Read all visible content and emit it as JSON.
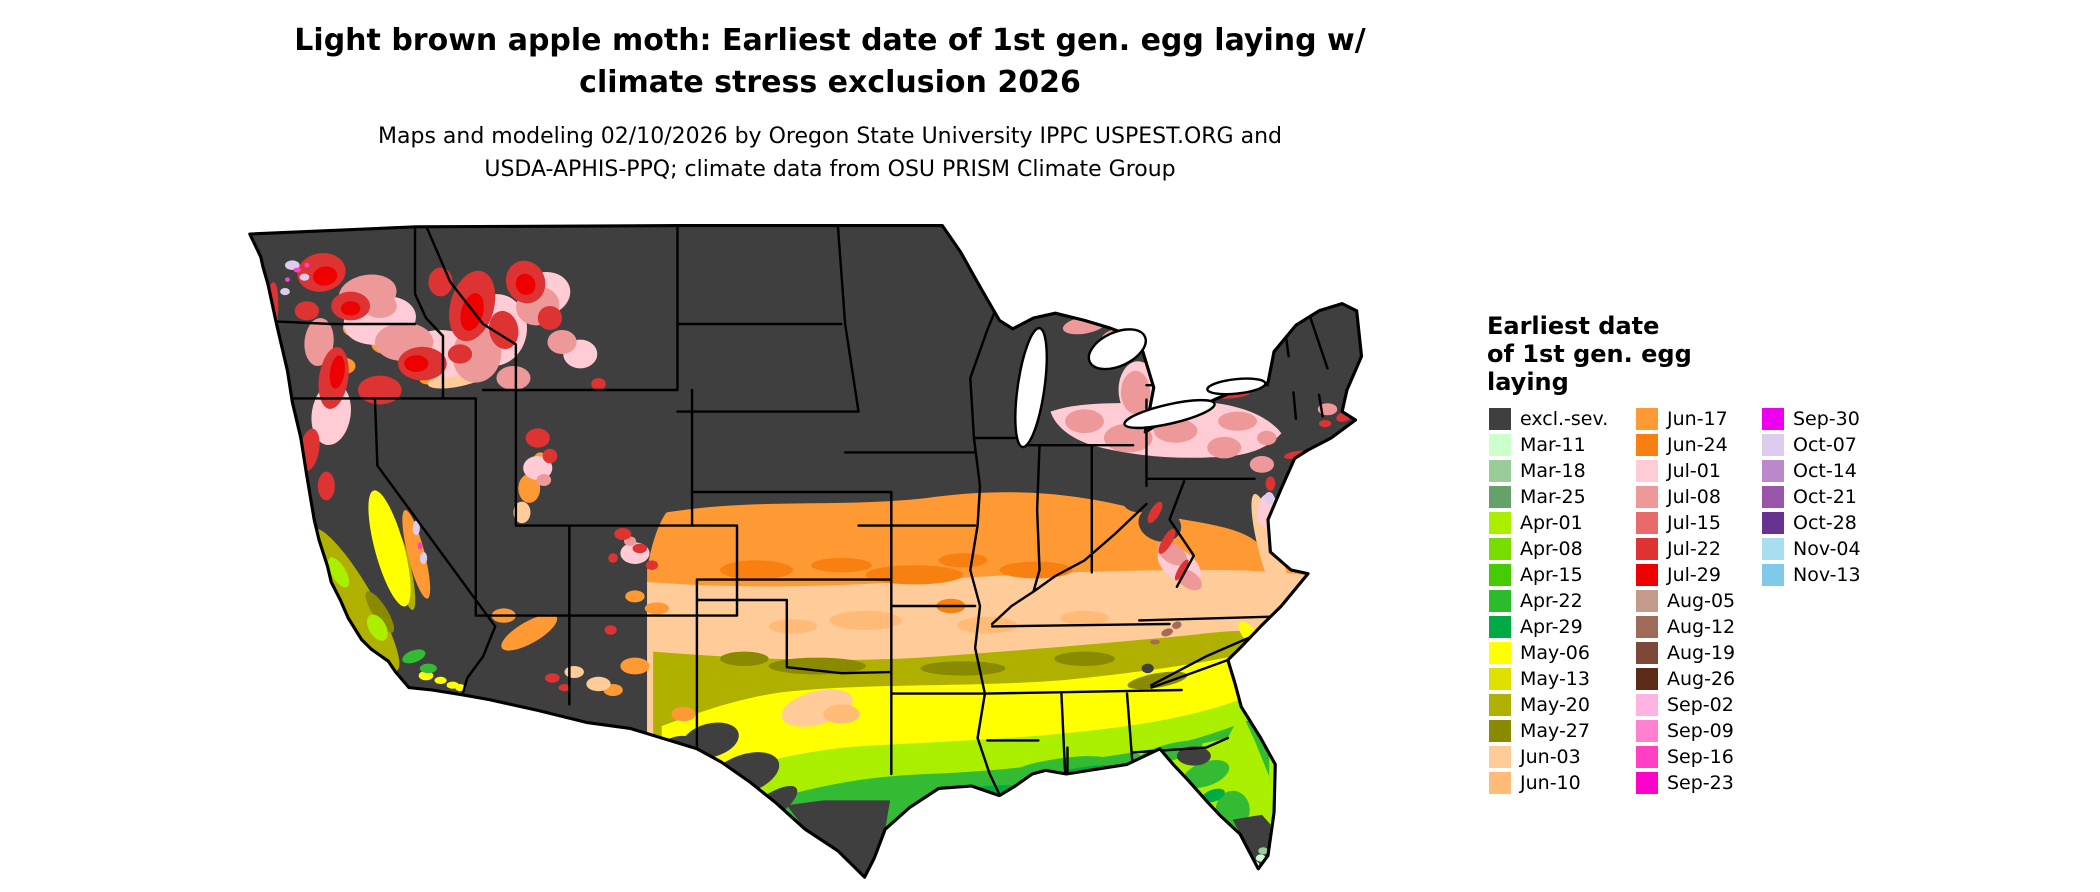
{
  "title": {
    "line1": "Light brown apple moth: Earliest date of 1st gen. egg laying w/",
    "line2": "climate stress exclusion 2026"
  },
  "subtitle": {
    "line1": "Maps and modeling 02/10/2026 by Oregon State University IPPC USPEST.ORG and",
    "line2": "USDA-APHIS-PPQ; climate data from OSU PRISM Climate Group"
  },
  "legend": {
    "title_lines": [
      "Earliest date",
      "of 1st gen. egg",
      "laying"
    ],
    "columns": [
      {
        "items": [
          {
            "label": "excl.-sev.",
            "color": "#3f3f3f"
          },
          {
            "label": "Mar-11",
            "color": "#ccffcc"
          },
          {
            "label": "Mar-18",
            "color": "#99cc99"
          },
          {
            "label": "Mar-25",
            "color": "#66a06b"
          },
          {
            "label": "Apr-01",
            "color": "#aaee00"
          },
          {
            "label": "Apr-08",
            "color": "#77dd00"
          },
          {
            "label": "Apr-15",
            "color": "#44cc00"
          },
          {
            "label": "Apr-22",
            "color": "#2bbb2b"
          },
          {
            "label": "Apr-29",
            "color": "#00aa44"
          },
          {
            "label": "May-06",
            "color": "#ffff00"
          },
          {
            "label": "May-13",
            "color": "#e0e000"
          },
          {
            "label": "May-20",
            "color": "#b0b000"
          },
          {
            "label": "May-27",
            "color": "#8a8a00"
          },
          {
            "label": "Jun-03",
            "color": "#ffcc99"
          },
          {
            "label": "Jun-10",
            "color": "#ffbb77"
          }
        ]
      },
      {
        "items": [
          {
            "label": "Jun-17",
            "color": "#ff9933"
          },
          {
            "label": "Jun-24",
            "color": "#f88010"
          },
          {
            "label": "Jul-01",
            "color": "#ffccd5"
          },
          {
            "label": "Jul-08",
            "color": "#ee9999"
          },
          {
            "label": "Jul-15",
            "color": "#e86a6a"
          },
          {
            "label": "Jul-22",
            "color": "#dd3333"
          },
          {
            "label": "Jul-29",
            "color": "#ee0000"
          },
          {
            "label": "Aug-05",
            "color": "#c49a8a"
          },
          {
            "label": "Aug-12",
            "color": "#a06a58"
          },
          {
            "label": "Aug-19",
            "color": "#7d4838"
          },
          {
            "label": "Aug-26",
            "color": "#5c2a18"
          },
          {
            "label": "Sep-02",
            "color": "#ffb3e0"
          },
          {
            "label": "Sep-09",
            "color": "#ff80d0"
          },
          {
            "label": "Sep-16",
            "color": "#ff40c4"
          },
          {
            "label": "Sep-23",
            "color": "#ff00cc"
          }
        ]
      },
      {
        "items": [
          {
            "label": "Sep-30",
            "color": "#ee00ee"
          },
          {
            "label": "Oct-07",
            "color": "#ddccee"
          },
          {
            "label": "Oct-14",
            "color": "#bb88cc"
          },
          {
            "label": "Oct-21",
            "color": "#9955aa"
          },
          {
            "label": "Oct-28",
            "color": "#663391"
          },
          {
            "label": "Nov-04",
            "color": "#a8def0"
          },
          {
            "label": "Nov-13",
            "color": "#7fc9e9"
          }
        ]
      }
    ]
  },
  "map": {
    "description": "Continental United States choropleth of earliest egg-laying date",
    "palette": {
      "excluded": "#3f3f3f",
      "lake": "#ffffff",
      "border": "#000000",
      "red": "#dd3333",
      "crimson": "#ee0000",
      "pink": "#ee9999",
      "pale_pink": "#ffccd5",
      "orange": "#ff9933",
      "deep_orange": "#f88010",
      "peach": "#ffcc99",
      "peach_dark": "#ffbb77",
      "yellow": "#ffff00",
      "olive": "#b0b000",
      "olive_dark": "#8a8a00",
      "yellow_green": "#aaee00",
      "green": "#33bb33",
      "deep_green": "#00aa44",
      "pale_green": "#ccffcc",
      "sage": "#99cc99",
      "lavender": "#ddccee",
      "magenta": "#ff40c4",
      "brown": "#a56a55"
    }
  }
}
